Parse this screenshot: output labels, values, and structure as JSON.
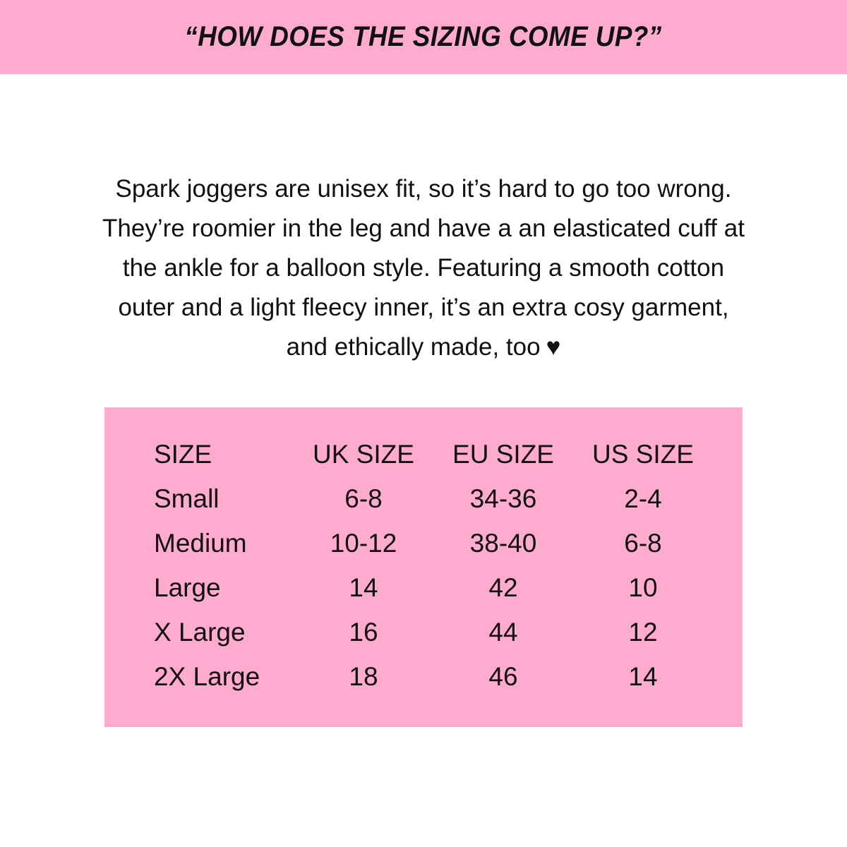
{
  "header": {
    "title": "“HOW DOES THE SIZING COME UP?”"
  },
  "description": {
    "lines": [
      "Spark joggers are unisex fit, so it’s hard to go too wrong.",
      "They’re roomier in the leg and have a an elasticated cuff at",
      "the ankle for a balloon style. Featuring a smooth cotton",
      "outer and a light fleecy inner, it’s an extra cosy garment,",
      "and ethically made, too"
    ],
    "heart_icon": "♥"
  },
  "colors": {
    "accent": "#ffabcf",
    "text": "#111111"
  },
  "size_table": {
    "headers": [
      "SIZE",
      "UK SIZE",
      "EU SIZE",
      "US SIZE"
    ],
    "rows": [
      [
        "Small",
        "6-8",
        "34-36",
        "2-4"
      ],
      [
        "Medium",
        "10-12",
        "38-40",
        "6-8"
      ],
      [
        "Large",
        "14",
        "42",
        "10"
      ],
      [
        "X Large",
        "16",
        "44",
        "12"
      ],
      [
        "2X Large",
        "18",
        "46",
        "14"
      ]
    ]
  }
}
